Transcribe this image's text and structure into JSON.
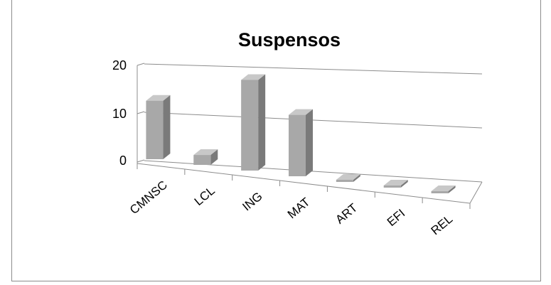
{
  "chart_data": {
    "type": "bar",
    "title": "Suspensos",
    "xlabel": "",
    "ylabel": "",
    "categories": [
      "CMNSC",
      "LCL",
      "ING",
      "MAT",
      "ART",
      "EFI",
      "REL"
    ],
    "values": [
      12,
      2,
      18,
      12,
      0,
      0,
      0
    ],
    "ylim": [
      0,
      20
    ],
    "yticks": [
      "0",
      "10",
      "20"
    ],
    "grid": true,
    "legend": "none",
    "three_d": true,
    "colors": {
      "bar_front": "#a8a8a8",
      "bar_side": "#7a7a7a",
      "bar_top": "#c8c8c8",
      "gridline": "#8c8c8c"
    }
  }
}
